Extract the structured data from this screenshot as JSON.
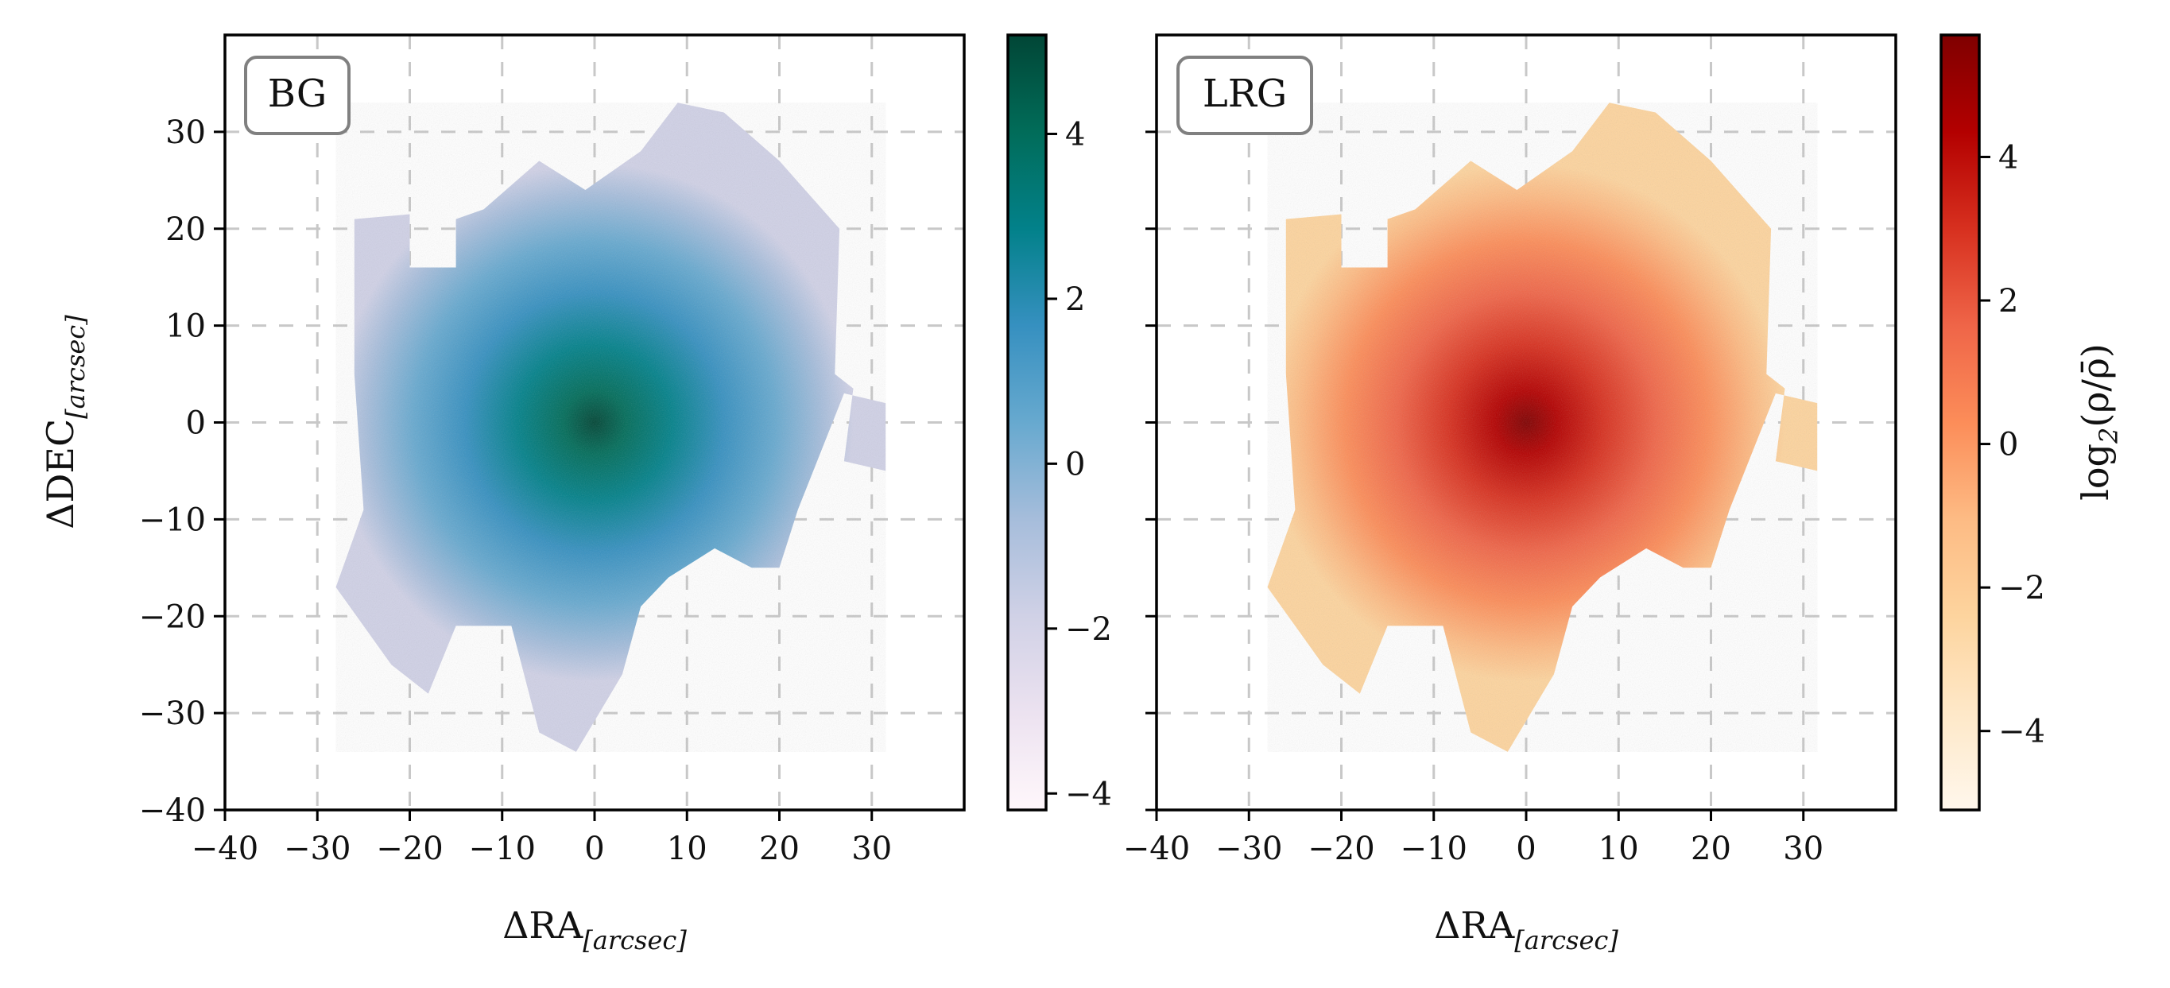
{
  "chart_data": [
    {
      "type": "heatmap",
      "panel_label": "BG",
      "xlabel_main": "ΔRA",
      "xlabel_sub": "[arcsec]",
      "ylabel_main": "ΔDEC",
      "ylabel_sub": "[arcsec]",
      "xlim": [
        -40,
        40
      ],
      "ylim": [
        -40,
        40
      ],
      "xticks": [
        -40,
        -30,
        -20,
        -10,
        0,
        10,
        20,
        30
      ],
      "yticks": [
        -40,
        -30,
        -20,
        -10,
        0,
        10,
        20,
        30
      ],
      "xtick_labels": [
        "−40",
        "−30",
        "−20",
        "−10",
        "0",
        "10",
        "20",
        "30"
      ],
      "ytick_labels": [
        "−40",
        "−30",
        "−20",
        "−10",
        "0",
        "10",
        "20",
        "30"
      ],
      "grid": true,
      "colormap": "PuBuGn",
      "colorbar": {
        "range": [
          -4.2,
          5.2
        ],
        "ticks": [
          -4,
          -2,
          0,
          2,
          4
        ],
        "tick_labels": [
          "−4",
          "−2",
          "0",
          "2",
          "4"
        ],
        "colors": [
          "#fff7fb",
          "#ece2f0",
          "#d0d1e6",
          "#a6bddb",
          "#67a9cf",
          "#3690c0",
          "#02818a",
          "#016c59",
          "#014636"
        ]
      },
      "footprint_polygons": [
        [
          [
            -26,
            21
          ],
          [
            -20,
            21.5
          ],
          [
            -20,
            16
          ],
          [
            -15,
            16
          ],
          [
            -15,
            21
          ],
          [
            -12,
            22
          ],
          [
            -6,
            27
          ],
          [
            -1,
            24
          ],
          [
            5,
            28
          ],
          [
            9,
            33
          ],
          [
            14,
            32
          ],
          [
            20,
            27
          ],
          [
            26.5,
            20
          ],
          [
            26,
            5
          ],
          [
            28,
            3.5
          ],
          [
            27,
            -4
          ],
          [
            31.5,
            -5
          ],
          [
            31.5,
            2
          ],
          [
            27,
            3
          ],
          [
            22,
            -9
          ],
          [
            20,
            -15
          ],
          [
            17,
            -15
          ],
          [
            13,
            -13
          ],
          [
            8,
            -16
          ],
          [
            5,
            -19
          ],
          [
            3,
            -26
          ],
          [
            -2,
            -34
          ],
          [
            -6,
            -32
          ],
          [
            -9,
            -21
          ],
          [
            -15,
            -21
          ],
          [
            -18,
            -28
          ],
          [
            -22,
            -25
          ],
          [
            -28,
            -17
          ],
          [
            -25,
            -9
          ],
          [
            -26,
            5
          ],
          [
            -26,
            21
          ]
        ]
      ],
      "density_peak": {
        "x": 0,
        "y": 0,
        "value": 5
      }
    },
    {
      "type": "heatmap",
      "panel_label": "LRG",
      "xlabel_main": "ΔRA",
      "xlabel_sub": "[arcsec]",
      "xlim": [
        -40,
        40
      ],
      "ylim": [
        -40,
        40
      ],
      "xticks": [
        -40,
        -30,
        -20,
        -10,
        0,
        10,
        20,
        30
      ],
      "xtick_labels": [
        "−40",
        "−30",
        "−20",
        "−10",
        "0",
        "10",
        "20",
        "30"
      ],
      "grid": true,
      "colormap": "OrRd",
      "colorbar": {
        "label_main": "log",
        "label_sub": "2",
        "label_rest": "(ρ/ρ̄)",
        "range": [
          -5.1,
          5.7
        ],
        "ticks": [
          -4,
          -2,
          0,
          2,
          4
        ],
        "tick_labels": [
          "−4",
          "−2",
          "0",
          "2",
          "4"
        ],
        "colors": [
          "#fff7ec",
          "#fee8c8",
          "#fdd49e",
          "#fdbb84",
          "#fc8d59",
          "#ef6548",
          "#d7301f",
          "#b30000",
          "#7f0000"
        ]
      },
      "footprint_polygons": [
        [
          [
            -26,
            21
          ],
          [
            -20,
            21.5
          ],
          [
            -20,
            16
          ],
          [
            -15,
            16
          ],
          [
            -15,
            21
          ],
          [
            -12,
            22
          ],
          [
            -6,
            27
          ],
          [
            -1,
            24
          ],
          [
            5,
            28
          ],
          [
            9,
            33
          ],
          [
            14,
            32
          ],
          [
            20,
            27
          ],
          [
            26.5,
            20
          ],
          [
            26,
            5
          ],
          [
            28,
            3.5
          ],
          [
            27,
            -4
          ],
          [
            31.5,
            -5
          ],
          [
            31.5,
            2
          ],
          [
            27,
            3
          ],
          [
            22,
            -9
          ],
          [
            20,
            -15
          ],
          [
            17,
            -15
          ],
          [
            13,
            -13
          ],
          [
            8,
            -16
          ],
          [
            5,
            -19
          ],
          [
            3,
            -26
          ],
          [
            -2,
            -34
          ],
          [
            -6,
            -32
          ],
          [
            -9,
            -21
          ],
          [
            -15,
            -21
          ],
          [
            -18,
            -28
          ],
          [
            -22,
            -25
          ],
          [
            -28,
            -17
          ],
          [
            -25,
            -9
          ],
          [
            -26,
            5
          ],
          [
            -26,
            21
          ]
        ]
      ],
      "density_peak": {
        "x": 0,
        "y": 0,
        "value": 5.5
      }
    }
  ]
}
